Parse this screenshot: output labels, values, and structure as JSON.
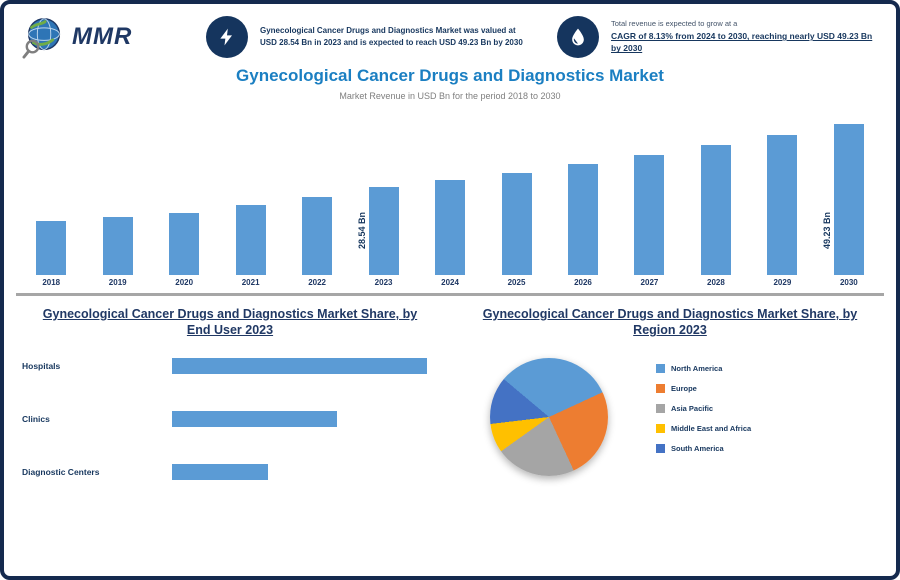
{
  "colors": {
    "bar": "#5B9BD5",
    "navy": "#17375E",
    "title_blue": "#1B7FC2",
    "divider_gray": "#A6A6A6",
    "border_navy": "#152A4E"
  },
  "header": {
    "logo_text": "MMR",
    "stats": [
      {
        "icon": "lightning-icon",
        "text": "Gynecological Cancer Drugs and Diagnostics Market was valued at USD 28.54 Bn in 2023 and is expected to reach USD 49.23 Bn by 2030"
      },
      {
        "icon": "droplet-icon",
        "text_small": "Total revenue is expected to grow at a",
        "text_bold": "CAGR of 8.13% from 2024 to 2030, reaching nearly USD 49.23 Bn by 2030"
      }
    ]
  },
  "title": "Gynecological Cancer Drugs and Diagnostics Market",
  "subtitle": "Market Revenue in USD Bn for the period 2018 to 2030",
  "sections": {
    "left_title": "Gynecological Cancer Drugs and Diagnostics Market Share, by End User 2023",
    "right_title": "Gynecological Cancer Drugs and Diagnostics Market Share, by Region 2023"
  },
  "chart_data": [
    {
      "type": "bar",
      "title": "Market Revenue (USD Bn), 2018-2030",
      "categories": [
        "2018",
        "2019",
        "2020",
        "2021",
        "2022",
        "2023",
        "2024",
        "2025",
        "2026",
        "2027",
        "2028",
        "2029",
        "2030"
      ],
      "values": [
        17.4,
        18.9,
        20.1,
        22.6,
        25.3,
        28.54,
        30.8,
        33.3,
        36.0,
        38.9,
        42.1,
        45.5,
        49.23
      ],
      "ylim": [
        0,
        52
      ],
      "unit": "USD Bn",
      "grid": false,
      "annotations": [
        {
          "category": "2023",
          "text": "28.54 Bn"
        },
        {
          "category": "2030",
          "text": "49.23 Bn"
        }
      ]
    },
    {
      "type": "bar",
      "orientation": "horizontal",
      "title": "Market Share, by End User 2023",
      "categories": [
        "Hospitals",
        "Clinics",
        "Diagnostic Centers"
      ],
      "values": [
        48,
        31,
        18
      ],
      "xlim": [
        0,
        50
      ],
      "unit": "%"
    },
    {
      "type": "pie",
      "title": "Market Share, by Region 2023",
      "labels": [
        "North America",
        "Europe",
        "Asia Pacific",
        "Middle East and Africa",
        "South America"
      ],
      "values": [
        32,
        25,
        22,
        8,
        13
      ],
      "colors": [
        "#5B9BD5",
        "#ED7D31",
        "#A5A5A5",
        "#FFC000",
        "#4472C4"
      ],
      "legend_position": "right",
      "start_angle_deg": 310
    }
  ]
}
